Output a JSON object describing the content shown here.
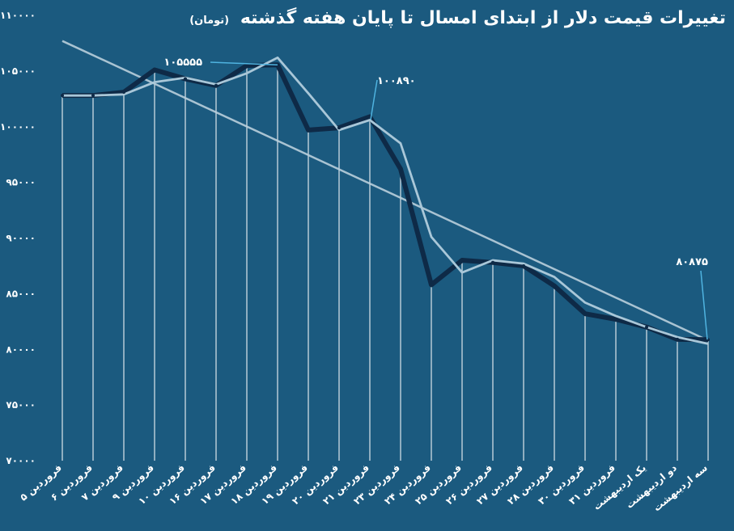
{
  "title": "تغییرات قیمت دلار از ابتدای امسال تا پایان هفته گذشته",
  "unit": "(تومان)",
  "colors": {
    "background": "#1b5a7f",
    "main_line": "#0e2a47",
    "smooth_line": "#a9c7d8",
    "trend_line": "#b9cfdc",
    "guide_line": "#ffffff",
    "annotation_line": "#4fb3e0",
    "text": "#ffffff"
  },
  "chart_data": {
    "type": "line",
    "ylim": [
      70000,
      110000
    ],
    "y_ticks": [
      70000,
      75000,
      80000,
      85000,
      90000,
      95000,
      100000,
      105000,
      110000
    ],
    "y_tick_labels": [
      "۷۰۰۰۰",
      "۷۵۰۰۰",
      "۸۰۰۰۰",
      "۸۵۰۰۰",
      "۹۰۰۰۰",
      "۹۵۰۰۰",
      "۱۰۰۰۰۰",
      "۱۰۵۰۰۰",
      "۱۱۰۰۰۰"
    ],
    "categories": [
      "۵ فروردین",
      "۶ فروردین",
      "۷ فروردین",
      "۹ فروردین",
      "۱۰ فروردین",
      "۱۶ فروردین",
      "۱۷ فروردین",
      "۱۸ فروردین",
      "۱۹ فروردین",
      "۲۰ فروردین",
      "۲۱ فروردین",
      "۲۳ فروردین",
      "۲۴ فروردین",
      "۲۵ فروردین",
      "۲۶ فروردین",
      "۲۷ فروردین",
      "۲۸ فروردین",
      "۳۰ فروردین",
      "۳۱ فروردین",
      "یک اردیبهشت",
      "دو اردیبهشت",
      "سه اردیبهشت"
    ],
    "series": [
      {
        "role": "price",
        "values": [
          102800,
          102800,
          103100,
          105100,
          104300,
          103700,
          105500,
          105555,
          99700,
          99900,
          100890,
          96200,
          85800,
          88000,
          87800,
          87500,
          85700,
          83200,
          82700,
          82000,
          80900,
          80875
        ]
      },
      {
        "role": "smoothed",
        "values": [
          102800,
          102800,
          102900,
          104000,
          104400,
          103800,
          104800,
          106200,
          103000,
          99700,
          100600,
          98500,
          90100,
          86900,
          88000,
          87700,
          86500,
          84200,
          83000,
          82000,
          81100,
          80500
        ]
      }
    ],
    "trend": {
      "start": 107700,
      "end": 80800
    },
    "annotations": [
      {
        "label": "۱۰۵۵۵۵",
        "index": 7,
        "value": 105555
      },
      {
        "label": "۱۰۰۸۹۰",
        "index": 10,
        "value": 100890
      },
      {
        "label": "۸۰۸۷۵",
        "index": 21,
        "value": 80875
      }
    ],
    "grid": false
  }
}
